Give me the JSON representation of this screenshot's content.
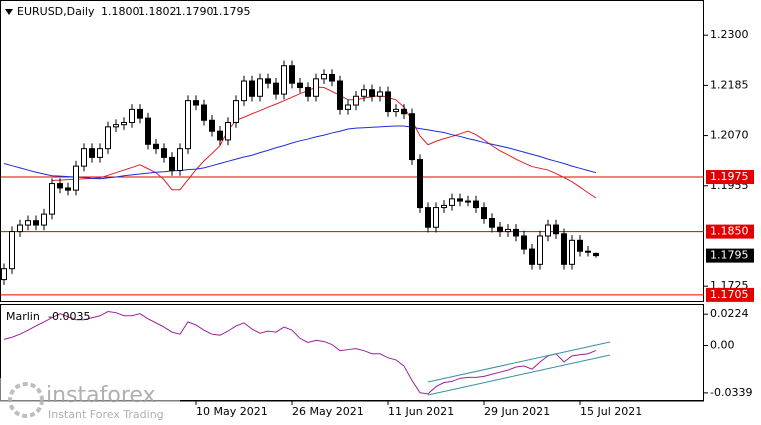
{
  "chart_data": [
    {
      "type": "candlestick",
      "title": "EURUSD,Daily",
      "last_labels": {
        "open": "1.1800",
        "high": "1.1802",
        "low": "1.1790",
        "close": "1.1795"
      },
      "categories": [
        null,
        null,
        null,
        null,
        null,
        null,
        null,
        null,
        null,
        null,
        null,
        null,
        null,
        null,
        null,
        null,
        null,
        null,
        null,
        null,
        null,
        null,
        null,
        null,
        "10 May 2021",
        null,
        null,
        null,
        null,
        null,
        null,
        null,
        null,
        null,
        null,
        null,
        "26 May 2021",
        null,
        null,
        null,
        null,
        null,
        null,
        null,
        null,
        null,
        null,
        null,
        "11 Jun 2021",
        null,
        null,
        null,
        null,
        null,
        null,
        null,
        null,
        null,
        null,
        null,
        "29 Jun 2021",
        null,
        null,
        null,
        null,
        null,
        null,
        null,
        null,
        null,
        null,
        null,
        "15 Jul 2021",
        null,
        null
      ],
      "open": [
        1.174,
        1.1765,
        1.185,
        1.1865,
        1.1875,
        1.1865,
        1.189,
        1.196,
        1.195,
        1.1945,
        1.2,
        1.204,
        1.202,
        1.204,
        1.209,
        1.2095,
        1.21,
        1.213,
        1.211,
        1.205,
        1.204,
        1.202,
        1.199,
        1.204,
        1.215,
        1.214,
        1.2105,
        1.208,
        1.206,
        1.21,
        1.215,
        1.2195,
        1.216,
        1.22,
        1.219,
        1.2165,
        1.223,
        1.219,
        1.218,
        1.216,
        1.22,
        1.221,
        1.2195,
        1.213,
        1.214,
        1.216,
        1.2175,
        1.216,
        1.217,
        1.2125,
        1.213,
        1.212,
        1.2015,
        1.1905,
        1.186,
        1.1905,
        1.191,
        1.1925,
        1.192,
        1.192,
        1.1905,
        1.188,
        1.186,
        1.185,
        1.1855,
        1.184,
        1.181,
        1.1775,
        1.184,
        1.1865,
        1.1845,
        1.1775,
        1.183,
        1.1805,
        1.18
      ],
      "high": [
        1.1777,
        1.1862,
        1.1877,
        1.1887,
        1.1887,
        1.1902,
        1.1972,
        1.1972,
        1.1962,
        1.2012,
        1.2052,
        1.2052,
        1.2052,
        1.2102,
        1.2107,
        1.2112,
        1.2142,
        1.2142,
        1.2122,
        1.2062,
        1.2052,
        1.2032,
        1.2052,
        1.2162,
        1.2162,
        1.2152,
        1.2117,
        1.2092,
        1.2112,
        1.2162,
        1.2207,
        1.2207,
        1.2212,
        1.2212,
        1.2202,
        1.2242,
        1.2242,
        1.2202,
        1.2192,
        1.2212,
        1.2222,
        1.2222,
        1.2207,
        1.2152,
        1.2172,
        1.2187,
        1.2187,
        1.2182,
        1.2182,
        1.2142,
        1.2142,
        1.2132,
        1.2027,
        1.1917,
        1.1917,
        1.1922,
        1.1937,
        1.1937,
        1.1932,
        1.1932,
        1.1917,
        1.1892,
        1.1872,
        1.1867,
        1.1867,
        1.1852,
        1.1822,
        1.1852,
        1.1877,
        1.1877,
        1.1857,
        1.1842,
        1.1842,
        1.1817,
        1.1802
      ],
      "low": [
        1.1728,
        1.1753,
        1.1838,
        1.1853,
        1.1853,
        1.1853,
        1.1878,
        1.1938,
        1.1933,
        1.1933,
        1.1988,
        1.2008,
        1.2008,
        1.2028,
        1.2078,
        1.2083,
        1.2088,
        1.2098,
        1.2038,
        1.2028,
        1.2008,
        1.1978,
        1.1978,
        1.2028,
        1.2128,
        1.2093,
        1.2068,
        1.2048,
        1.2048,
        1.2088,
        1.2138,
        1.2148,
        1.2148,
        1.2178,
        1.2153,
        1.2153,
        1.2178,
        1.2168,
        1.2148,
        1.2148,
        1.2188,
        1.2183,
        1.2118,
        1.2118,
        1.2128,
        1.2148,
        1.2148,
        1.2148,
        1.2113,
        1.2113,
        1.2108,
        1.2003,
        1.1893,
        1.1848,
        1.1848,
        1.1893,
        1.1898,
        1.1908,
        1.1908,
        1.1893,
        1.1868,
        1.1848,
        1.1838,
        1.1838,
        1.1828,
        1.1798,
        1.1763,
        1.1763,
        1.1828,
        1.1833,
        1.1763,
        1.1763,
        1.1793,
        1.1793,
        1.179
      ],
      "close": [
        1.1765,
        1.185,
        1.1865,
        1.1875,
        1.1865,
        1.189,
        1.196,
        1.195,
        1.1945,
        1.2,
        1.204,
        1.202,
        1.204,
        1.209,
        1.2095,
        1.21,
        1.213,
        1.211,
        1.205,
        1.204,
        1.202,
        1.199,
        1.204,
        1.215,
        1.214,
        1.2105,
        1.208,
        1.206,
        1.21,
        1.215,
        1.2195,
        1.216,
        1.22,
        1.219,
        1.2165,
        1.223,
        1.219,
        1.218,
        1.216,
        1.22,
        1.221,
        1.2195,
        1.213,
        1.214,
        1.216,
        1.2175,
        1.216,
        1.217,
        1.2125,
        1.213,
        1.212,
        1.2015,
        1.1905,
        1.186,
        1.1905,
        1.191,
        1.1925,
        1.192,
        1.192,
        1.1905,
        1.188,
        1.186,
        1.185,
        1.1855,
        1.184,
        1.181,
        1.1775,
        1.184,
        1.1865,
        1.1845,
        1.1775,
        1.183,
        1.1805,
        1.1805,
        1.1795
      ],
      "series": [
        {
          "color": "#e0202a",
          "values": [
            null,
            null,
            null,
            null,
            null,
            null,
            1.1967,
            1.1968,
            1.1969,
            1.197,
            1.1971,
            1.1972,
            1.1973,
            1.1979,
            1.1985,
            1.1991,
            1.1997,
            1.2003,
            1.1994,
            1.1985,
            1.1969,
            1.1946,
            1.1946,
            1.1969,
            1.1992,
            1.2012,
            1.2029,
            1.2047,
            1.2082,
            1.2105,
            1.2112,
            1.212,
            1.2127,
            1.2135,
            1.2142,
            1.215,
            1.2158,
            1.2166,
            1.2173,
            1.2181,
            1.218,
            1.2171,
            1.2162,
            1.2152,
            1.2152,
            1.2156,
            1.2159,
            1.2162,
            1.2157,
            1.2152,
            1.2135,
            1.2105,
            1.2069,
            1.2049,
            1.2057,
            1.2063,
            1.2068,
            1.2074,
            1.208,
            1.2072,
            1.206,
            1.2047,
            1.2035,
            1.2026,
            1.2016,
            1.2007,
            1.1999,
            1.1995,
            1.1991,
            1.1983,
            1.1974,
            1.1964,
            1.1952,
            1.1939,
            1.1927
          ]
        },
        {
          "color": "#1c2fd6",
          "values": [
            1.2006,
            1.2001,
            1.1996,
            1.1991,
            1.1986,
            1.1982,
            1.1978,
            1.1977,
            1.1976,
            1.1975,
            1.1974,
            1.1972,
            1.1971,
            1.1973,
            1.1975,
            1.1978,
            1.198,
            1.1982,
            1.1984,
            1.1986,
            1.1987,
            1.1989,
            1.199,
            1.1992,
            1.1993,
            1.1996,
            1.2001,
            1.2006,
            1.2011,
            1.2016,
            1.2021,
            1.2025,
            1.2031,
            1.2036,
            1.2042,
            1.2047,
            1.2053,
            1.2058,
            1.2062,
            1.2067,
            1.2071,
            1.2076,
            1.208,
            1.2085,
            1.2087,
            1.2088,
            1.2089,
            1.209,
            1.2091,
            1.2092,
            1.2092,
            1.2089,
            1.2086,
            1.2083,
            1.208,
            1.2077,
            1.2072,
            1.2068,
            1.2063,
            1.2059,
            1.2054,
            1.205,
            1.2046,
            1.2042,
            1.2037,
            1.2032,
            1.2027,
            1.2022,
            1.2016,
            1.2011,
            1.2006,
            1.2,
            1.1995,
            1.199,
            1.1985
          ]
        }
      ],
      "ylim": [
        1.1691,
        1.2376
      ],
      "yticks": [
        {
          "value": 1.23,
          "label": "1.2300"
        },
        1.2185,
        {
          "value": 1.207,
          "label": "1.2070"
        },
        1.1955,
        1.1725
      ],
      "levels": [
        1.1975,
        {
          "value": 1.185,
          "label": "1.1850"
        },
        1.1705
      ],
      "level_color": "#e00000",
      "up_color": "#ffffff",
      "down_color": "#000000"
    },
    {
      "type": "line",
      "series": [
        {
          "name": "Marlin",
          "color": "#a0209a",
          "values": [
            0.0044,
            0.0059,
            0.0081,
            0.011,
            0.014,
            0.0169,
            0.0199,
            0.0228,
            0.0206,
            0.0184,
            0.0184,
            0.0199,
            0.0213,
            0.0243,
            0.0235,
            0.0213,
            0.0213,
            0.0228,
            0.0191,
            0.0162,
            0.0132,
            0.0096,
            0.0081,
            0.0169,
            0.0147,
            0.011,
            0.0081,
            0.0074,
            0.0103,
            0.014,
            0.0162,
            0.0118,
            0.0088,
            0.0103,
            0.0096,
            0.0132,
            0.011,
            0.0051,
            0.0022,
            0.0037,
            0.0029,
            0.0007,
            -0.0037,
            -0.0029,
            -0.0022,
            -0.0037,
            -0.0059,
            -0.0059,
            -0.0088,
            -0.0103,
            -0.0147,
            -0.025,
            -0.0338,
            -0.0346,
            -0.0294,
            -0.0265,
            -0.0257,
            -0.0235,
            -0.0228,
            -0.0228,
            -0.0221,
            -0.0206,
            -0.0191,
            -0.0176,
            -0.0154,
            -0.0147,
            -0.0169,
            -0.0118,
            -0.0074,
            -0.0059,
            -0.0118,
            -0.0074,
            -0.0066,
            -0.0059,
            -0.0035
          ]
        }
      ],
      "ylim": [
        -0.039,
        0.029
      ],
      "yticks": [
        0.0224,
        {
          "value": 0,
          "label": "0.00"
        },
        -0.0339
      ]
    }
  ],
  "watermark": {
    "brand": "instaforex",
    "tagline": "Instant Forex Trading"
  }
}
